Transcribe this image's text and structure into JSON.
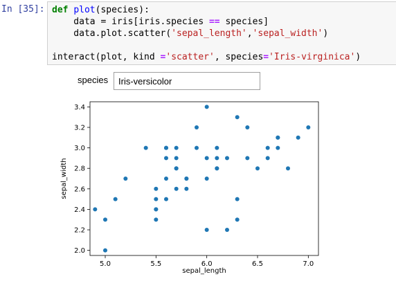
{
  "cell": {
    "prompt": "In [35]:",
    "code": {
      "line1": {
        "kw": "def",
        "fn": "plot",
        "rest": "(species):"
      },
      "line2": {
        "a": "    data = iris[iris.species ",
        "op": "==",
        "b": " species]"
      },
      "line3": {
        "a": "    data.plot.scatter(",
        "s1": "'sepal_length'",
        "comma": ",",
        "s2": "'sepal_width'",
        "b": ")"
      },
      "line5": {
        "a": "interact(plot, kind ",
        "op": "=",
        "s1": "'scatter'",
        "b": ", species",
        "op2": "=",
        "s2": "'Iris-virginica'",
        "c": ")"
      }
    }
  },
  "widget": {
    "label": "species",
    "value": "Iris-versicolor"
  },
  "chart_data": {
    "type": "scatter",
    "xlabel": "sepal_length",
    "ylabel": "sepal_width",
    "xlim": [
      4.85,
      7.1
    ],
    "ylim": [
      1.95,
      3.45
    ],
    "xticks": [
      5.0,
      5.5,
      6.0,
      6.5,
      7.0
    ],
    "yticks": [
      2.0,
      2.2,
      2.4,
      2.6,
      2.8,
      3.0,
      3.2,
      3.4
    ],
    "grid": false,
    "marker_color": "#1f77b4",
    "points": [
      [
        7.0,
        3.2
      ],
      [
        6.4,
        3.2
      ],
      [
        6.9,
        3.1
      ],
      [
        5.5,
        2.3
      ],
      [
        6.5,
        2.8
      ],
      [
        5.7,
        2.8
      ],
      [
        6.3,
        3.3
      ],
      [
        4.9,
        2.4
      ],
      [
        6.6,
        2.9
      ],
      [
        5.2,
        2.7
      ],
      [
        5.0,
        2.0
      ],
      [
        5.9,
        3.0
      ],
      [
        6.0,
        2.2
      ],
      [
        6.1,
        2.9
      ],
      [
        5.6,
        2.9
      ],
      [
        6.7,
        3.1
      ],
      [
        5.6,
        3.0
      ],
      [
        5.8,
        2.7
      ],
      [
        6.2,
        2.2
      ],
      [
        5.6,
        2.5
      ],
      [
        5.9,
        3.2
      ],
      [
        6.1,
        2.8
      ],
      [
        6.3,
        2.5
      ],
      [
        6.1,
        2.8
      ],
      [
        6.4,
        2.9
      ],
      [
        6.6,
        3.0
      ],
      [
        6.8,
        2.8
      ],
      [
        6.7,
        3.0
      ],
      [
        6.0,
        2.9
      ],
      [
        5.7,
        2.6
      ],
      [
        5.5,
        2.4
      ],
      [
        5.5,
        2.4
      ],
      [
        5.8,
        2.7
      ],
      [
        6.0,
        2.7
      ],
      [
        5.4,
        3.0
      ],
      [
        6.0,
        3.4
      ],
      [
        6.7,
        3.1
      ],
      [
        6.3,
        2.3
      ],
      [
        5.6,
        3.0
      ],
      [
        5.5,
        2.5
      ],
      [
        5.5,
        2.6
      ],
      [
        6.1,
        3.0
      ],
      [
        5.8,
        2.6
      ],
      [
        5.0,
        2.3
      ],
      [
        5.6,
        2.7
      ],
      [
        5.7,
        3.0
      ],
      [
        5.7,
        2.9
      ],
      [
        6.2,
        2.9
      ],
      [
        5.1,
        2.5
      ],
      [
        5.7,
        2.8
      ]
    ]
  }
}
